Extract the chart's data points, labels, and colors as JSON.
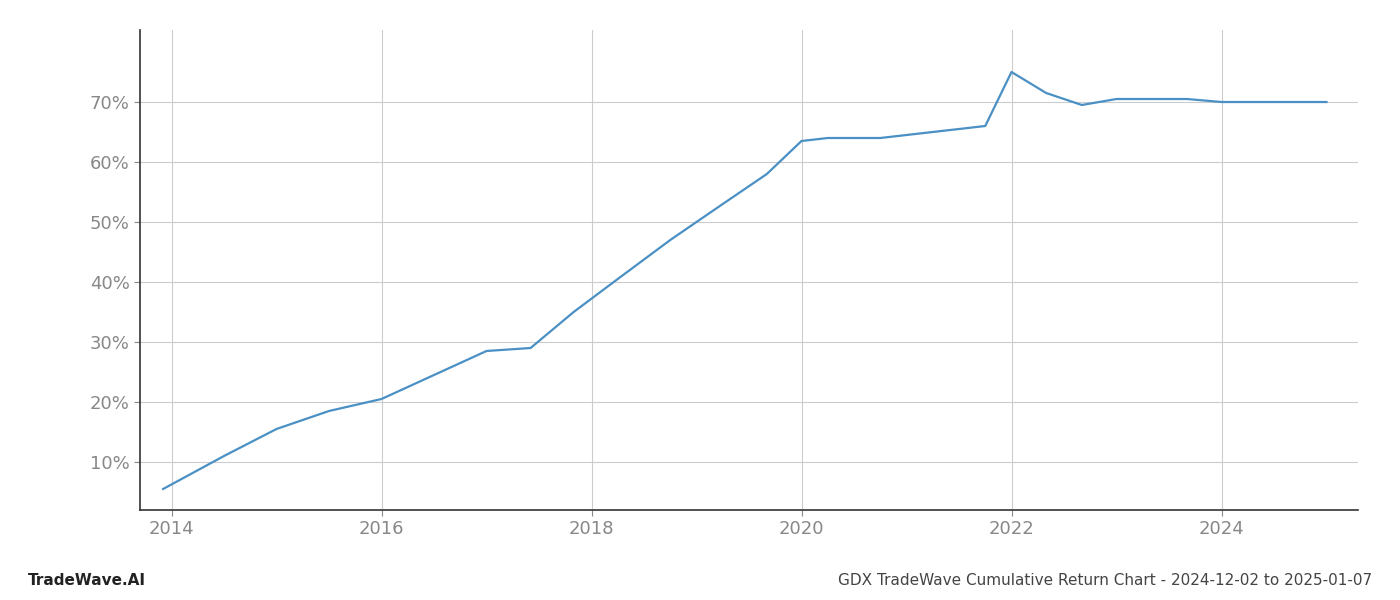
{
  "x_values": [
    2013.92,
    2014.5,
    2015.0,
    2015.5,
    2016.0,
    2016.5,
    2017.0,
    2017.42,
    2017.83,
    2018.25,
    2018.75,
    2019.25,
    2019.67,
    2020.0,
    2020.25,
    2020.5,
    2020.75,
    2021.0,
    2021.25,
    2021.75,
    2022.0,
    2022.33,
    2022.67,
    2023.0,
    2023.33,
    2023.67,
    2024.0,
    2024.33,
    2024.67,
    2025.0
  ],
  "y_values": [
    5.5,
    11.0,
    15.5,
    18.5,
    20.5,
    24.5,
    28.5,
    29.0,
    35.0,
    40.5,
    47.0,
    53.0,
    58.0,
    63.5,
    64.0,
    64.0,
    64.0,
    64.5,
    65.0,
    66.0,
    75.0,
    71.5,
    69.5,
    70.5,
    70.5,
    70.5,
    70.0,
    70.0,
    70.0,
    70.0
  ],
  "line_color": "#4a90c4",
  "line_width": 1.6,
  "background_color": "#ffffff",
  "grid_color": "#cccccc",
  "tick_color": "#888888",
  "bottom_left_label": "TradeWave.AI",
  "bottom_right_label": "GDX TradeWave Cumulative Return Chart - 2024-12-02 to 2025-01-07",
  "yticks": [
    10,
    20,
    30,
    40,
    50,
    60,
    70
  ],
  "xticks": [
    2014,
    2016,
    2018,
    2020,
    2022,
    2024
  ],
  "ylim": [
    2,
    82
  ],
  "xlim": [
    2013.7,
    2025.3
  ]
}
